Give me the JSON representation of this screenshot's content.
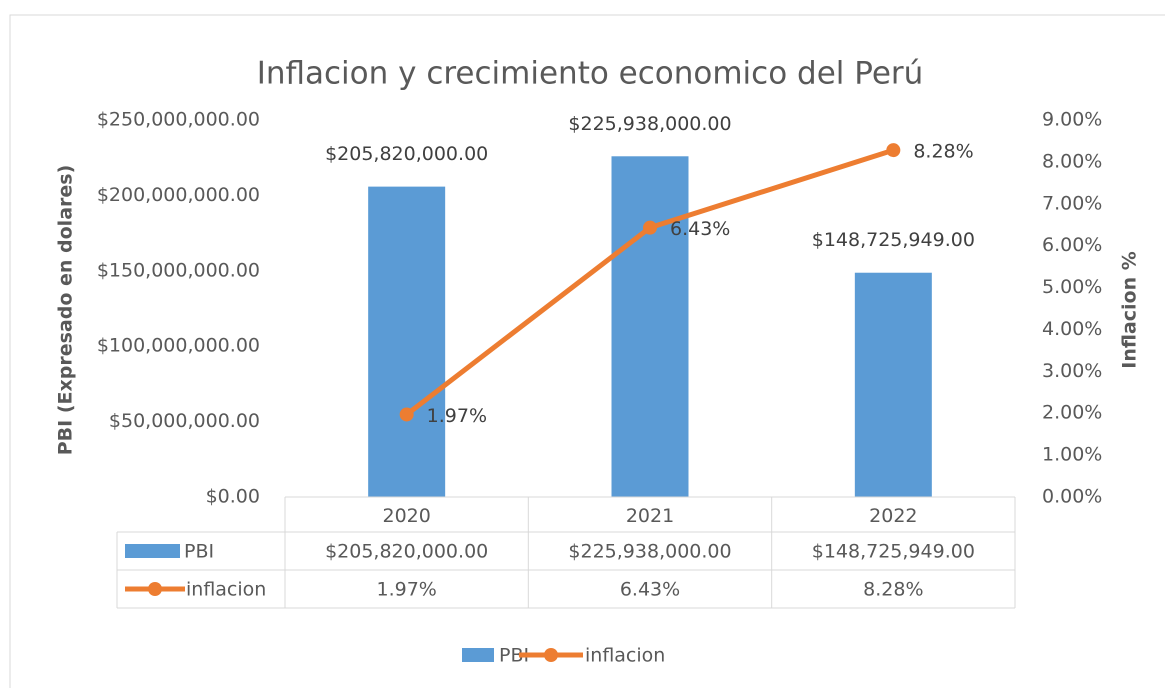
{
  "chart_data": {
    "type": "bar_line",
    "title": "Inflacion y crecimiento economico del Perú",
    "categories": [
      "2020",
      "2021",
      "2022"
    ],
    "series": [
      {
        "name": "PBI",
        "color": "#5b9bd5",
        "values": [
          205820000,
          225938000,
          148725949
        ],
        "value_labels": [
          "$205,820,000.00",
          "$225,938,000.00",
          "$148,725,949.00"
        ]
      },
      {
        "name": "inflacion",
        "color": "#ed7d31",
        "axis": "y2",
        "values": [
          1.97,
          6.43,
          8.28
        ],
        "value_labels": [
          "1.97%",
          "6.43%",
          "8.28%"
        ]
      }
    ],
    "ylabel": "PBI (Expresado en dolares)",
    "y2label": "Inflacion %",
    "ylim": [
      0,
      250000000
    ],
    "yticks": [
      {
        "value": 0,
        "label": "$0.00"
      },
      {
        "value": 50000000,
        "label": "$50,000,000.00"
      },
      {
        "value": 100000000,
        "label": "$100,000,000.00"
      },
      {
        "value": 150000000,
        "label": "$150,000,000.00"
      },
      {
        "value": 200000000,
        "label": "$200,000,000.00"
      },
      {
        "value": 250000000,
        "label": "$250,000,000.00"
      }
    ],
    "y2lim": [
      0,
      9
    ],
    "y2ticks": [
      {
        "value": 0,
        "label": "0.00%"
      },
      {
        "value": 1,
        "label": "1.00%"
      },
      {
        "value": 2,
        "label": "2.00%"
      },
      {
        "value": 3,
        "label": "3.00%"
      },
      {
        "value": 4,
        "label": "4.00%"
      },
      {
        "value": 5,
        "label": "5.00%"
      },
      {
        "value": 6,
        "label": "6.00%"
      },
      {
        "value": 7,
        "label": "7.00%"
      },
      {
        "value": 8,
        "label": "8.00%"
      },
      {
        "value": 9,
        "label": "9.00%"
      }
    ],
    "legend": "bottom",
    "data_table": true
  }
}
